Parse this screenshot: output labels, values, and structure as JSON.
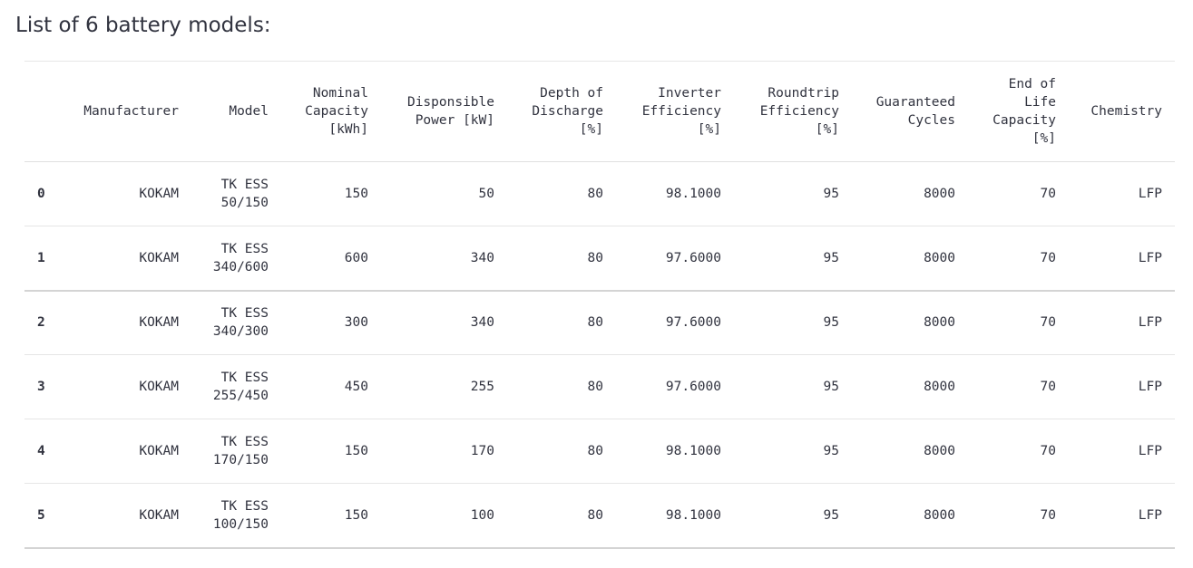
{
  "title": "List of 6 battery models:",
  "table": {
    "headers": [
      "",
      "Manufacturer",
      "Model",
      "Nominal\nCapacity\n[kWh]",
      "Disponsible\nPower [kW]",
      "Depth of\nDischarge\n[%]",
      "Inverter\nEfficiency\n[%]",
      "Roundtrip\nEfficiency\n[%]",
      "Guaranteed\nCycles",
      "End of\nLife\nCapacity\n[%]",
      "Chemistry"
    ],
    "rows": [
      [
        "0",
        "KOKAM",
        "TK ESS\n50/150",
        "150",
        "50",
        "80",
        "98.1000",
        "95",
        "8000",
        "70",
        "LFP"
      ],
      [
        "1",
        "KOKAM",
        "TK ESS\n340/600",
        "600",
        "340",
        "80",
        "97.6000",
        "95",
        "8000",
        "70",
        "LFP"
      ],
      [
        "2",
        "KOKAM",
        "TK ESS\n340/300",
        "300",
        "340",
        "80",
        "97.6000",
        "95",
        "8000",
        "70",
        "LFP"
      ],
      [
        "3",
        "KOKAM",
        "TK ESS\n255/450",
        "450",
        "255",
        "80",
        "97.6000",
        "95",
        "8000",
        "70",
        "LFP"
      ],
      [
        "4",
        "KOKAM",
        "TK ESS\n170/150",
        "150",
        "170",
        "80",
        "98.1000",
        "95",
        "8000",
        "70",
        "LFP"
      ],
      [
        "5",
        "KOKAM",
        "TK ESS\n100/150",
        "150",
        "100",
        "80",
        "98.1000",
        "95",
        "8000",
        "70",
        "LFP"
      ]
    ]
  }
}
